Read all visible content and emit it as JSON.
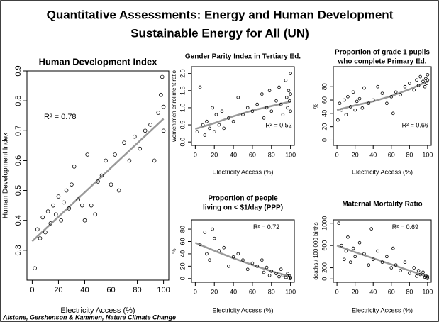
{
  "header": {
    "title": [
      "Quantitative Assessments: Energy and Human Development",
      "Sustainable Energy for All (UN)"
    ]
  },
  "footer": {
    "source": "Alstone, Gershenson & Kammen, Nature Climate Change"
  },
  "chart_data": [
    {
      "type": "scatter",
      "title": [
        "Human Development Index"
      ],
      "xlabel": "Electricity Access (%)",
      "ylabel": "Human Development Index",
      "annotation": "R² = 0.78",
      "xlim": [
        -4,
        104
      ],
      "ylim": [
        0.2,
        0.9
      ],
      "xticks": [
        0,
        20,
        40,
        60,
        80,
        100
      ],
      "yticks": [
        0.3,
        0.4,
        0.5,
        0.6,
        0.7,
        0.8,
        0.9
      ],
      "color": "#000000",
      "trend_color": "#999999",
      "x": [
        2,
        4,
        6,
        8,
        10,
        12,
        14,
        16,
        18,
        20,
        22,
        24,
        26,
        28,
        30,
        32,
        35,
        38,
        40,
        42,
        45,
        48,
        50,
        53,
        56,
        60,
        63,
        66,
        70,
        74,
        78,
        82,
        86,
        90,
        93,
        96,
        98,
        99,
        100,
        100
      ],
      "values": [
        0.24,
        0.37,
        0.34,
        0.41,
        0.36,
        0.43,
        0.39,
        0.45,
        0.42,
        0.48,
        0.4,
        0.46,
        0.5,
        0.44,
        0.52,
        0.58,
        0.47,
        0.45,
        0.4,
        0.62,
        0.45,
        0.42,
        0.53,
        0.55,
        0.6,
        0.52,
        0.62,
        0.5,
        0.66,
        0.6,
        0.68,
        0.64,
        0.7,
        0.72,
        0.6,
        0.76,
        0.82,
        0.88,
        0.7,
        0.78
      ],
      "trend": {
        "x": [
          0,
          100
        ],
        "values": [
          0.33,
          0.74
        ]
      }
    },
    {
      "type": "scatter",
      "title": [
        "Gender Parity Index in Tertiary Ed."
      ],
      "xlabel": "Electricity Access (%)",
      "ylabel": "women:men enrollment ratio",
      "annotation": "R² = 0.52",
      "xlim": [
        -4,
        104
      ],
      "ylim": [
        -0.1,
        2.2
      ],
      "xticks": [
        0,
        20,
        40,
        60,
        80,
        100
      ],
      "yticks": [
        {
          "value": 0,
          "label": "0.0"
        },
        0.5,
        {
          "value": 1,
          "label": "1.0"
        },
        1.5,
        {
          "value": 2,
          "label": "2.0"
        }
      ],
      "color": "#000000",
      "trend_color": "#999999",
      "x": [
        2,
        5,
        8,
        10,
        12,
        15,
        18,
        20,
        22,
        25,
        28,
        30,
        35,
        40,
        45,
        50,
        55,
        60,
        65,
        70,
        72,
        75,
        78,
        80,
        85,
        88,
        90,
        92,
        95,
        96,
        97,
        98,
        99,
        100,
        100,
        100
      ],
      "values": [
        0.3,
        1.6,
        0.5,
        0.2,
        0.6,
        0.4,
        1.0,
        0.3,
        0.8,
        0.5,
        0.9,
        0.4,
        0.7,
        0.6,
        1.3,
        0.8,
        1.0,
        0.9,
        1.1,
        1.4,
        0.7,
        1.0,
        1.5,
        0.9,
        1.2,
        1.6,
        1.1,
        0.8,
        1.8,
        1.3,
        1.0,
        1.5,
        1.2,
        2.0,
        1.4,
        0.9
      ],
      "trend": {
        "x": [
          0,
          20,
          40,
          60,
          80,
          100
        ],
        "values": [
          0.38,
          0.55,
          0.75,
          0.92,
          1.05,
          1.18
        ]
      }
    },
    {
      "type": "scatter",
      "title": [
        "Proportion of grade 1 pupils",
        "who complete Primary Ed."
      ],
      "xlabel": "Electricity Access (%)",
      "ylabel": "%",
      "annotation": "R² = 0.66",
      "xlim": [
        -4,
        104
      ],
      "ylim": [
        -8,
        110
      ],
      "xticks": [
        0,
        20,
        40,
        60,
        80,
        100
      ],
      "yticks": [
        0,
        20,
        40,
        60,
        80
      ],
      "color": "#000000",
      "trend_color": "#999999",
      "x": [
        1,
        3,
        5,
        8,
        10,
        12,
        15,
        18,
        20,
        22,
        25,
        28,
        30,
        35,
        40,
        45,
        50,
        55,
        60,
        62,
        65,
        70,
        75,
        80,
        85,
        88,
        90,
        92,
        95,
        97,
        98,
        99,
        100,
        100
      ],
      "values": [
        30,
        55,
        45,
        60,
        38,
        65,
        50,
        72,
        45,
        58,
        62,
        48,
        78,
        55,
        60,
        80,
        70,
        55,
        65,
        40,
        72,
        68,
        80,
        85,
        75,
        90,
        82,
        95,
        88,
        80,
        92,
        85,
        98,
        90
      ],
      "trend": {
        "x": [
          0,
          20,
          40,
          60,
          80,
          100
        ],
        "values": [
          45,
          52,
          58,
          66,
          76,
          88
        ]
      }
    },
    {
      "type": "scatter",
      "title": [
        "Proportion of people",
        "living on < $1/day (PPP)"
      ],
      "xlabel": "Electricity Access (%)",
      "ylabel": "%",
      "annotation": "R² = 0.72",
      "xlim": [
        -4,
        104
      ],
      "ylim": [
        -6,
        95
      ],
      "xticks": [
        0,
        20,
        40,
        60,
        80,
        100
      ],
      "yticks": [
        0,
        20,
        40,
        60,
        80
      ],
      "color": "#000000",
      "trend_color": "#999999",
      "x": [
        5,
        10,
        12,
        15,
        18,
        20,
        25,
        30,
        35,
        40,
        45,
        50,
        55,
        60,
        65,
        70,
        72,
        75,
        78,
        80,
        85,
        88,
        90,
        92,
        95,
        97,
        98,
        99,
        100,
        100
      ],
      "values": [
        55,
        75,
        40,
        30,
        80,
        65,
        45,
        50,
        20,
        35,
        40,
        30,
        15,
        25,
        20,
        30,
        10,
        18,
        5,
        12,
        8,
        3,
        15,
        5,
        2,
        8,
        1,
        4,
        0,
        2
      ],
      "trend": {
        "x": [
          0,
          20,
          40,
          60,
          80,
          100
        ],
        "values": [
          58,
          45,
          33,
          22,
          12,
          3
        ]
      }
    },
    {
      "type": "scatter",
      "title": [
        "Maternal Mortality Ratio"
      ],
      "xlabel": "Electricity Access (%)",
      "ylabel": "deaths / 100,000 births",
      "annotation": "R² = 0.69",
      "xlim": [
        -4,
        104
      ],
      "ylim": [
        -60,
        1060
      ],
      "xticks": [
        0,
        20,
        40,
        60,
        80,
        100
      ],
      "yticks": [
        0,
        200,
        600,
        1000
      ],
      "color": "#000000",
      "trend_color": "#999999",
      "x": [
        2,
        5,
        8,
        10,
        12,
        15,
        18,
        20,
        25,
        30,
        35,
        38,
        40,
        45,
        50,
        55,
        60,
        62,
        65,
        70,
        75,
        80,
        85,
        88,
        90,
        92,
        95,
        97,
        98,
        99,
        100,
        100
      ],
      "values": [
        1000,
        600,
        350,
        500,
        750,
        300,
        550,
        400,
        650,
        450,
        250,
        900,
        350,
        500,
        300,
        400,
        200,
        550,
        250,
        150,
        300,
        100,
        200,
        50,
        150,
        80,
        120,
        30,
        60,
        20,
        10,
        40
      ],
      "trend": {
        "x": [
          0,
          20,
          40,
          60,
          80,
          100
        ],
        "values": [
          600,
          480,
          370,
          260,
          150,
          40
        ]
      }
    }
  ]
}
